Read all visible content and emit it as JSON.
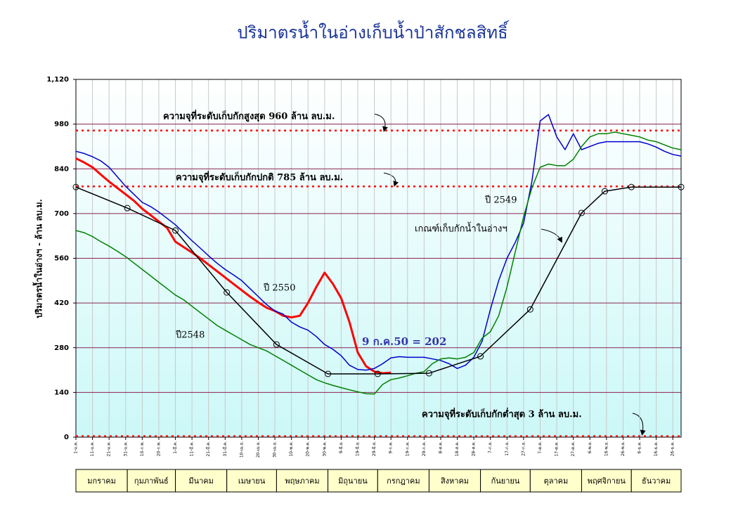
{
  "chart_data": {
    "type": "line",
    "title": "ปริมาตรน้ำในอ่างเก็บน้ำป่าสักชลสิทธิ์",
    "y_label": "ปริมาตรน้ำในอ่างฯ - ล้าน ลบ.ม.",
    "xlim": [
      1,
      366
    ],
    "ylim": [
      0,
      1120
    ],
    "yticks": [
      0,
      140,
      280,
      420,
      560,
      700,
      840,
      980,
      {
        "value": 1120,
        "label": "1,120"
      }
    ],
    "xticks": [
      {
        "value": 1,
        "label": "1-ม.ค."
      },
      {
        "value": 11,
        "label": "11-ม.ค."
      },
      {
        "value": 21,
        "label": "21-ม.ค."
      },
      {
        "value": 31,
        "label": "31-ม.ค."
      },
      {
        "value": 41,
        "label": "10-ก.พ."
      },
      {
        "value": 51,
        "label": "20-ก.พ."
      },
      {
        "value": 61,
        "label": "1-มี.ค."
      },
      {
        "value": 71,
        "label": "11-มี.ค."
      },
      {
        "value": 81,
        "label": "21-มี.ค."
      },
      {
        "value": 91,
        "label": "31-มี.ค."
      },
      {
        "value": 101,
        "label": "10-เม.ย."
      },
      {
        "value": 111,
        "label": "20-เม.ย."
      },
      {
        "value": 121,
        "label": "30-เม.ย."
      },
      {
        "value": 131,
        "label": "10-พ.ค."
      },
      {
        "value": 141,
        "label": "20-พ.ค."
      },
      {
        "value": 151,
        "label": "30-พ.ค."
      },
      {
        "value": 161,
        "label": "9-มิ.ย."
      },
      {
        "value": 171,
        "label": "19-มิ.ย."
      },
      {
        "value": 181,
        "label": "29-มิ.ย."
      },
      {
        "value": 191,
        "label": "9-ก.ค."
      },
      {
        "value": 201,
        "label": "19-ก.ค."
      },
      {
        "value": 211,
        "label": "29-ก.ค."
      },
      {
        "value": 221,
        "label": "8-ส.ค."
      },
      {
        "value": 231,
        "label": "18-ส.ค."
      },
      {
        "value": 241,
        "label": "28-ส.ค."
      },
      {
        "value": 251,
        "label": "7-ก.ย."
      },
      {
        "value": 261,
        "label": "17-ก.ย."
      },
      {
        "value": 271,
        "label": "27-ก.ย."
      },
      {
        "value": 281,
        "label": "7-ต.ค."
      },
      {
        "value": 291,
        "label": "17-ต.ค."
      },
      {
        "value": 301,
        "label": "27-ต.ค."
      },
      {
        "value": 311,
        "label": "6-พ.ย."
      },
      {
        "value": 321,
        "label": "16-พ.ย."
      },
      {
        "value": 331,
        "label": "26-พ.ย."
      },
      {
        "value": 341,
        "label": "6-ธ.ค."
      },
      {
        "value": 351,
        "label": "16-ธ.ค."
      },
      {
        "value": 361,
        "label": "26-ธ.ค."
      }
    ],
    "months": [
      "มกราคม",
      "กุมภาพันธ์",
      "มีนาคม",
      "เมษายน",
      "พฤษภาคม",
      "มิถุนายน",
      "กรกฎาคม",
      "สิงหาคม",
      "กันยายน",
      "ตุลาคม",
      "พฤศจิกายน",
      "ธันวาคม"
    ],
    "grid": true,
    "series": [
      {
        "name": "ปี 2550",
        "color": "#ff0000",
        "width": 3,
        "x": [
          1,
          6,
          11,
          16,
          21,
          26,
          31,
          36,
          41,
          46,
          51,
          56,
          61,
          66,
          71,
          76,
          81,
          86,
          91,
          96,
          101,
          106,
          111,
          116,
          121,
          126,
          131,
          136,
          141,
          146,
          151,
          156,
          161,
          166,
          171,
          176,
          181,
          186,
          191
        ],
        "values": [
          873,
          860,
          845,
          822,
          800,
          780,
          760,
          740,
          715,
          695,
          675,
          655,
          612,
          595,
          578,
          560,
          540,
          520,
          500,
          480,
          460,
          440,
          422,
          405,
          395,
          380,
          375,
          380,
          420,
          470,
          515,
          480,
          435,
          360,
          265,
          222,
          205,
          200,
          202
        ]
      },
      {
        "name": "ปี 2549",
        "color": "#0000cc",
        "width": 1.5,
        "x": [
          1,
          6,
          11,
          16,
          21,
          26,
          31,
          36,
          41,
          46,
          51,
          56,
          61,
          66,
          71,
          76,
          81,
          86,
          91,
          96,
          101,
          106,
          111,
          116,
          121,
          126,
          131,
          136,
          141,
          146,
          151,
          156,
          161,
          166,
          171,
          176,
          181,
          186,
          191,
          196,
          201,
          206,
          211,
          216,
          221,
          226,
          231,
          236,
          241,
          246,
          251,
          256,
          261,
          266,
          271,
          276,
          281,
          286,
          291,
          296,
          301,
          306,
          311,
          316,
          321,
          326,
          331,
          336,
          341,
          346,
          351,
          356,
          361,
          366
        ],
        "values": [
          895,
          888,
          878,
          865,
          845,
          815,
          785,
          760,
          735,
          722,
          705,
          685,
          665,
          640,
          615,
          592,
          568,
          545,
          525,
          508,
          490,
          465,
          440,
          415,
          395,
          385,
          360,
          345,
          335,
          315,
          290,
          275,
          255,
          225,
          212,
          210,
          215,
          230,
          248,
          252,
          250,
          250,
          250,
          245,
          240,
          230,
          215,
          225,
          250,
          300,
          400,
          490,
          560,
          610,
          670,
          800,
          990,
          1010,
          940,
          900,
          950,
          900,
          910,
          920,
          925,
          925,
          925,
          925,
          925,
          918,
          908,
          895,
          885,
          880
        ]
      },
      {
        "name": "ปี2548",
        "color": "#008000",
        "width": 1.5,
        "x": [
          1,
          6,
          11,
          16,
          21,
          26,
          31,
          36,
          41,
          46,
          51,
          56,
          61,
          66,
          71,
          76,
          81,
          86,
          91,
          96,
          101,
          106,
          111,
          116,
          121,
          126,
          131,
          136,
          141,
          146,
          151,
          156,
          161,
          166,
          171,
          176,
          181,
          186,
          191,
          196,
          201,
          206,
          211,
          216,
          221,
          226,
          231,
          236,
          241,
          246,
          251,
          256,
          261,
          266,
          271,
          276,
          281,
          286,
          291,
          296,
          301,
          306,
          311,
          316,
          321,
          326,
          331,
          336,
          341,
          346,
          351,
          356,
          361,
          366
        ],
        "values": [
          647,
          640,
          628,
          612,
          598,
          582,
          565,
          545,
          525,
          505,
          485,
          465,
          445,
          430,
          410,
          390,
          370,
          350,
          335,
          320,
          305,
          290,
          280,
          270,
          255,
          240,
          225,
          210,
          195,
          180,
          170,
          162,
          155,
          148,
          142,
          136,
          135,
          165,
          180,
          185,
          192,
          200,
          205,
          230,
          245,
          248,
          245,
          250,
          265,
          310,
          330,
          380,
          470,
          580,
          690,
          780,
          845,
          855,
          850,
          850,
          870,
          910,
          940,
          950,
          950,
          955,
          950,
          945,
          940,
          930,
          925,
          915,
          905,
          900
        ]
      },
      {
        "name": "เกณฑ์เก็บกักน้ำในอ่างฯ",
        "color": "#000000",
        "width": 1.5,
        "markers": true,
        "x": [
          1,
          32,
          61,
          92,
          122,
          153,
          183,
          214,
          245,
          275,
          306,
          320,
          336,
          366
        ],
        "values": [
          783,
          717,
          647,
          453,
          290,
          198,
          198,
          200,
          253,
          400,
          702,
          770,
          783,
          783
        ]
      }
    ],
    "reference_lines": [
      {
        "value": 960,
        "label": "ความจุที่ระดับเก็บกักสูงสุด 960 ล้าน ลบ.ม.",
        "color": "#ff0000"
      },
      {
        "value": 785,
        "label": "ความจุที่ระดับเก็บกักปกติ 785 ล้าน ลบ.ม.",
        "color": "#ff0000"
      },
      {
        "value": 3,
        "label": "ความจุที่ระดับเก็บกักต่ำสุด 3 ล้าน ลบ.ม.",
        "color": "#ff0000"
      }
    ],
    "annotations": [
      {
        "text": "9 ก.ค.50 = 202",
        "color": "#3333aa"
      }
    ]
  }
}
